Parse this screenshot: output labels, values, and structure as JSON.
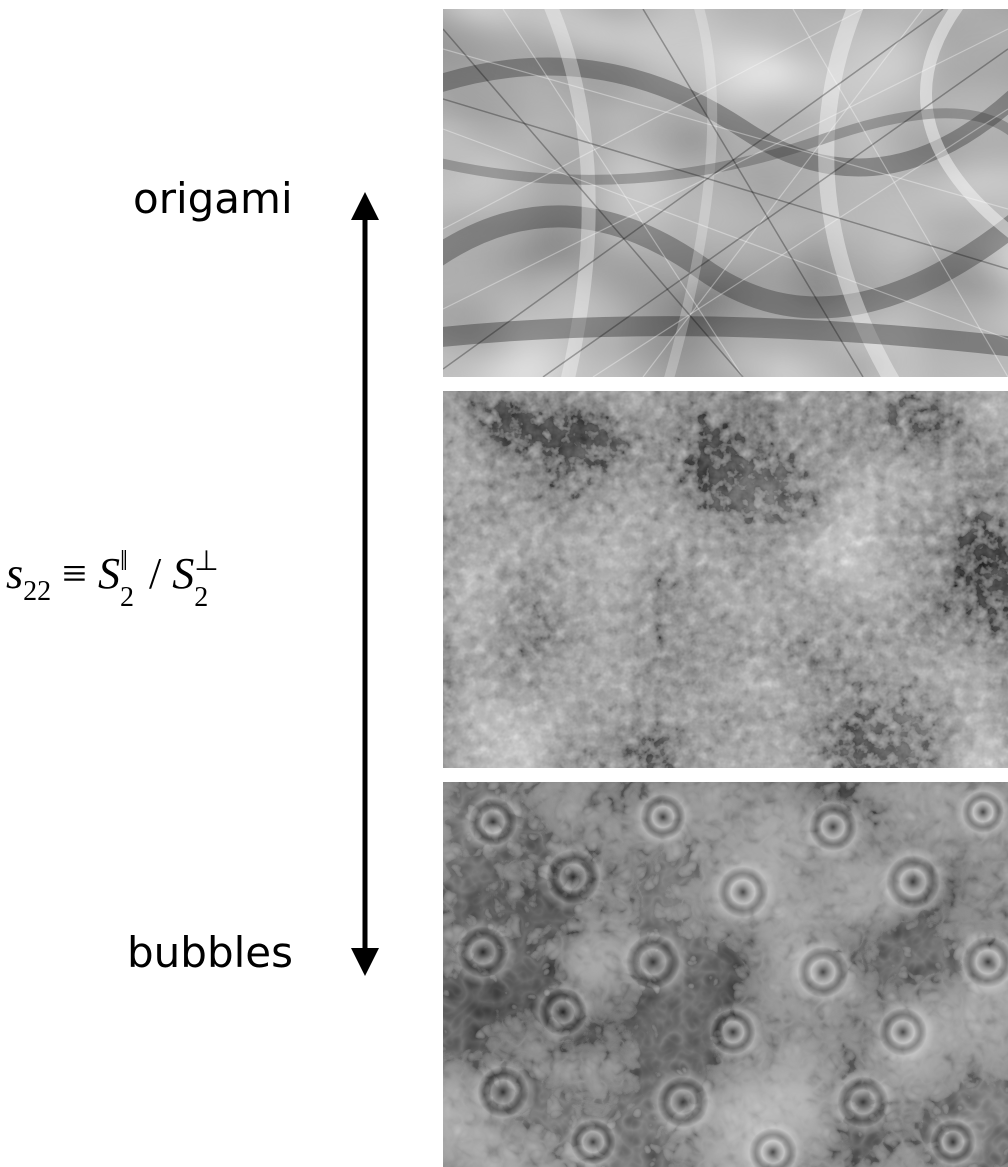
{
  "labels": {
    "top": "origami",
    "bottom": "bubbles"
  },
  "formula": {
    "lhs": "s",
    "lhs_sub": "22",
    "equiv": "≡",
    "num": "S",
    "num_sub": "2",
    "num_sup": "‖",
    "slash": "/",
    "den": "S",
    "den_sub": "2",
    "den_sup": "⊥"
  },
  "colors": {
    "ink": "#000000",
    "background": "#ffffff"
  }
}
